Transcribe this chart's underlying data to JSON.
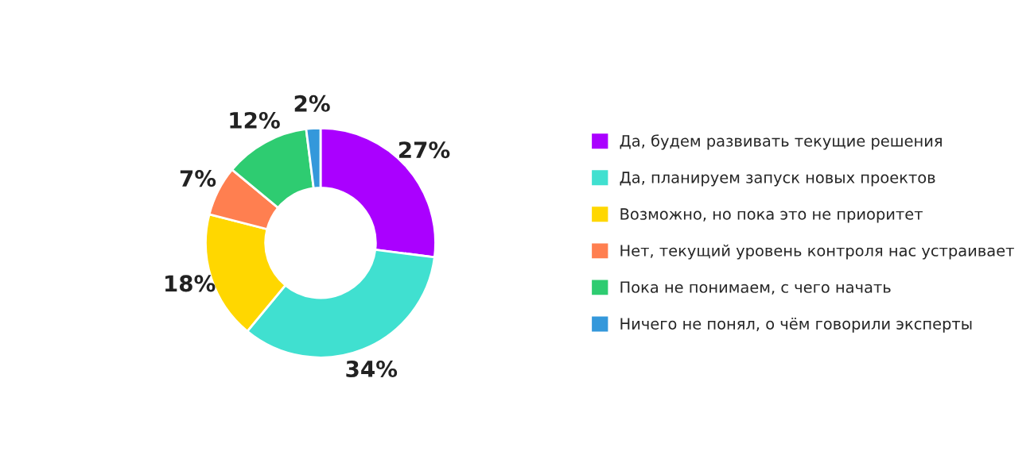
{
  "chart_data": {
    "type": "donut",
    "categories": [
      "Да, будем развивать текущие решения",
      "Да, планируем запуск новых проектов",
      "Возможно, но пока это не приоритет",
      "Нет, текущий уровень контроля нас устраивает",
      "Пока не понимаем, с чего начать",
      "Ничего не понял, о чём говорили эксперты"
    ],
    "values": [
      27,
      34,
      18,
      7,
      12,
      2
    ],
    "colors": [
      "#aa00ff",
      "#40e0d0",
      "#ffd700",
      "#ff7f50",
      "#2ecc71",
      "#3498db"
    ],
    "value_labels": [
      "27%",
      "34%",
      "18%",
      "7%",
      "12%",
      "2%"
    ],
    "legend": "right"
  }
}
